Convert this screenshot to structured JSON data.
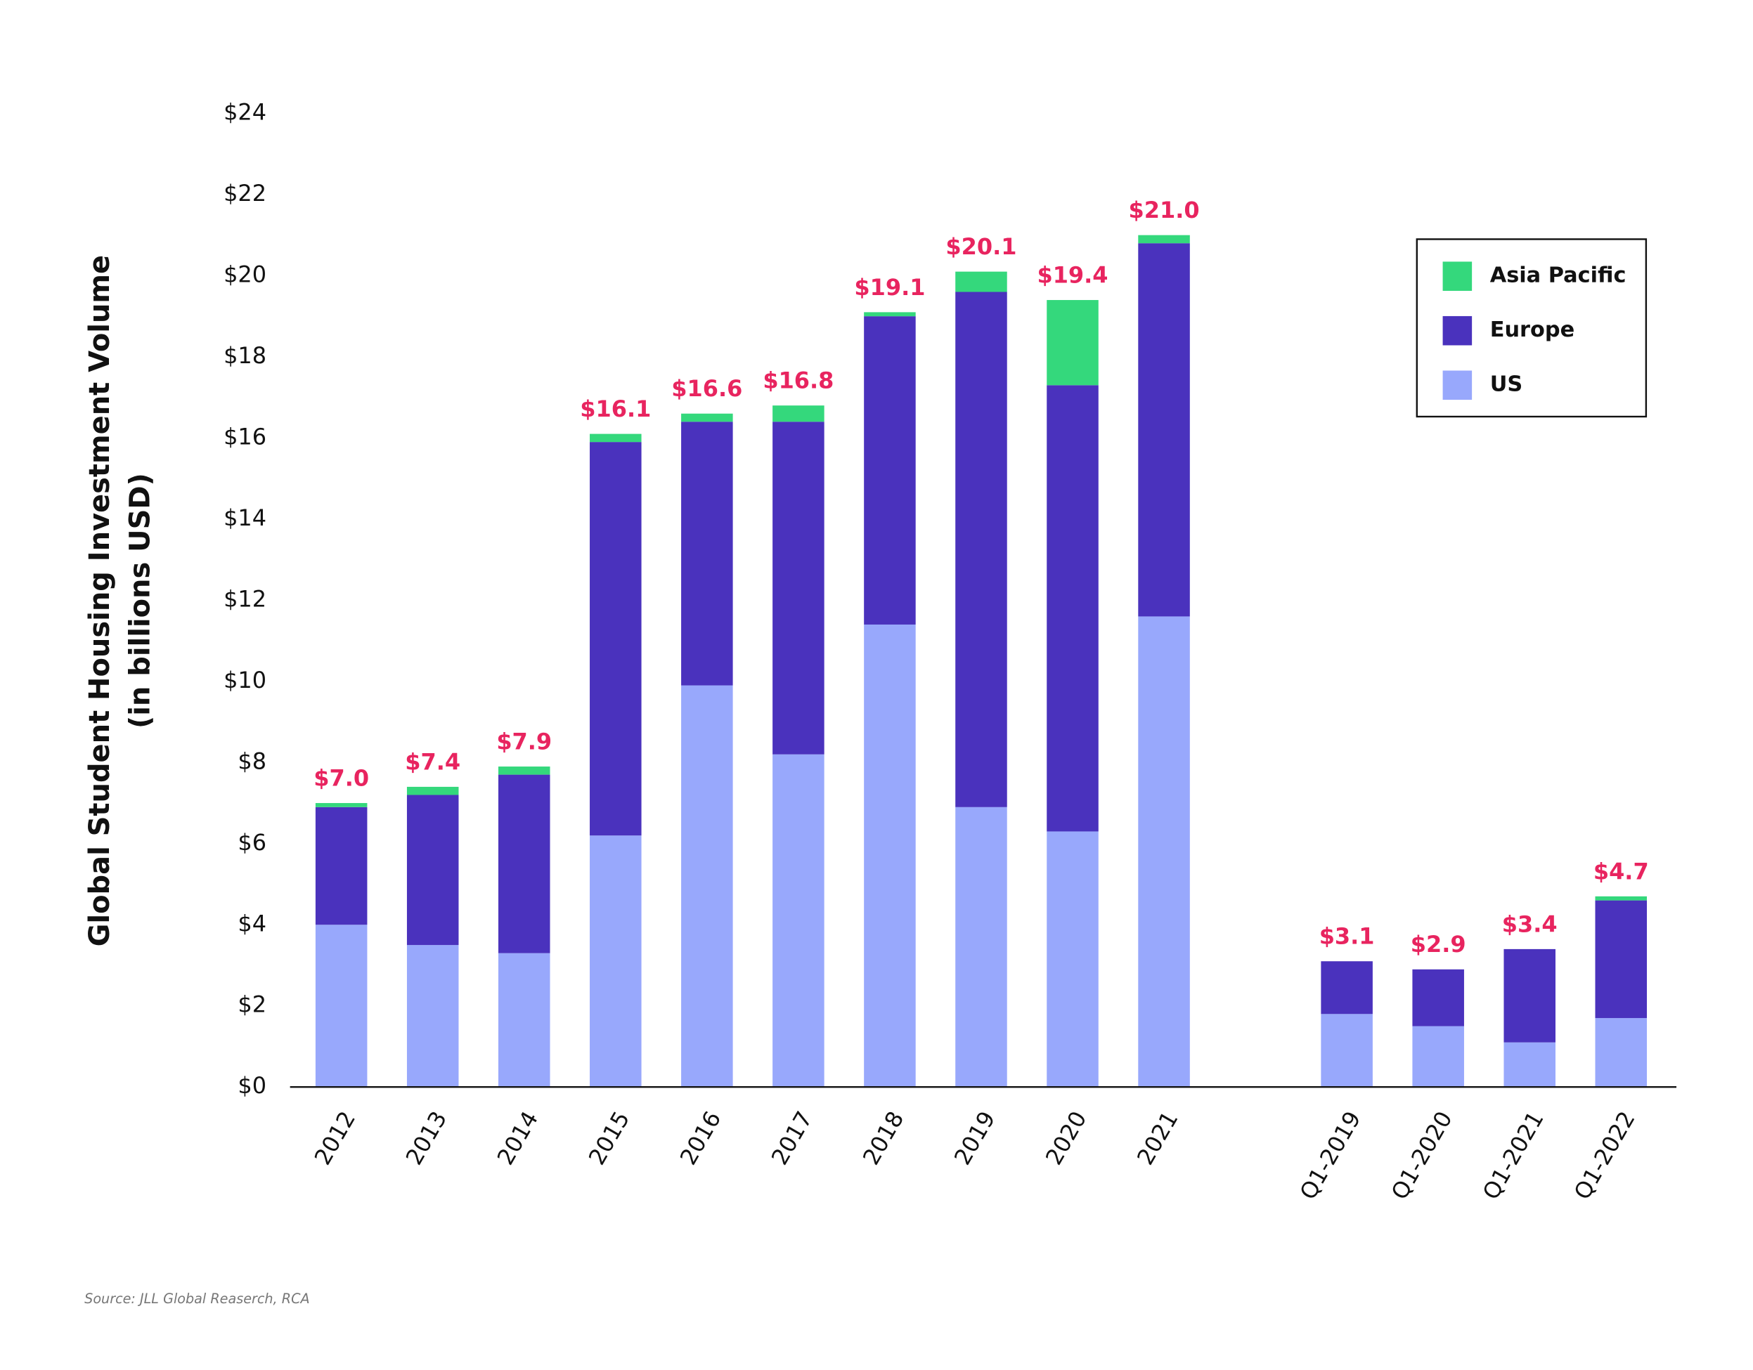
{
  "chart_data": {
    "type": "stacked_bar",
    "ylabel": [
      "Global Student Housing Investment Volume",
      "(in billions USD)"
    ],
    "source": "Source: JLL Global Reaserch, RCA",
    "categories": [
      "2012",
      "2013",
      "2014",
      "2015",
      "2016",
      "2017",
      "2018",
      "2019",
      "2020",
      "2021",
      null,
      "Q1-2019",
      "Q1-2020",
      "Q1-2021",
      "Q1-2022"
    ],
    "series": [
      {
        "name": "US",
        "color": "#98a8fc",
        "values": [
          4.0,
          3.5,
          3.3,
          6.2,
          9.9,
          8.2,
          11.4,
          6.9,
          6.3,
          11.6,
          null,
          1.8,
          1.5,
          1.1,
          1.7
        ]
      },
      {
        "name": "Europe",
        "color": "#4a32bd",
        "values": [
          2.9,
          3.7,
          4.4,
          9.7,
          6.5,
          8.2,
          7.6,
          12.7,
          11.0,
          9.2,
          null,
          1.3,
          1.4,
          2.3,
          2.9
        ]
      },
      {
        "name": "Asia Pacific",
        "color": "#34d87c",
        "values": [
          0.1,
          0.2,
          0.2,
          0.2,
          0.2,
          0.4,
          0.1,
          0.5,
          2.1,
          0.2,
          null,
          0,
          0,
          0,
          0.1
        ]
      }
    ],
    "totals": {
      "color": "#e8245f",
      "values": [
        7.0,
        7.4,
        7.9,
        16.1,
        16.6,
        16.8,
        19.1,
        20.1,
        19.4,
        21.0,
        null,
        3.1,
        2.9,
        3.4,
        4.7
      ],
      "value_labels": [
        "$7.0",
        "$7.4",
        "$7.9",
        "$16.1",
        "$16.6",
        "$16.8",
        "$19.1",
        "$20.1",
        "$19.4",
        "$21.0",
        null,
        "$3.1",
        "$2.9",
        "$3.4",
        "$4.7"
      ]
    },
    "ylim": [
      0,
      24
    ],
    "yticks": [
      {
        "value": 0,
        "label": "$0"
      },
      {
        "value": 2,
        "label": "$2"
      },
      {
        "value": 4,
        "label": "$4"
      },
      {
        "value": 6,
        "label": "$6"
      },
      {
        "value": 8,
        "label": "$8"
      },
      {
        "value": 10,
        "label": "$10"
      },
      {
        "value": 12,
        "label": "$12"
      },
      {
        "value": 14,
        "label": "$14"
      },
      {
        "value": 16,
        "label": "$16"
      },
      {
        "value": 18,
        "label": "$18"
      },
      {
        "value": 20,
        "label": "$20"
      },
      {
        "value": 22,
        "label": "$22"
      },
      {
        "value": 24,
        "label": "$24"
      }
    ],
    "grid": false,
    "legend": "upper right"
  }
}
